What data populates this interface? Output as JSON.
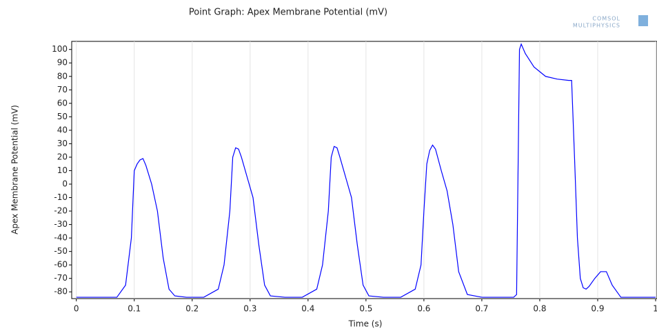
{
  "logo": [
    "COMSOL",
    "MULTIPHYSICS"
  ],
  "chart_data": {
    "type": "line",
    "title": "Point Graph: Apex Membrane Potential (mV)",
    "xlabel": "Time (s)",
    "ylabel": "Apex Membrane Potential (mV)",
    "x": [
      0,
      0.07,
      0.085,
      0.095,
      0.1,
      0.105,
      0.11,
      0.115,
      0.12,
      0.13,
      0.14,
      0.15,
      0.16,
      0.17,
      0.19,
      0.22,
      0.245,
      0.255,
      0.265,
      0.27,
      0.275,
      0.28,
      0.285,
      0.295,
      0.305,
      0.315,
      0.325,
      0.335,
      0.36,
      0.39,
      0.415,
      0.425,
      0.435,
      0.44,
      0.445,
      0.45,
      0.455,
      0.465,
      0.475,
      0.485,
      0.495,
      0.505,
      0.53,
      0.56,
      0.585,
      0.595,
      0.6,
      0.605,
      0.61,
      0.615,
      0.62,
      0.63,
      0.64,
      0.65,
      0.66,
      0.675,
      0.7,
      0.755,
      0.76,
      0.765,
      0.768,
      0.775,
      0.79,
      0.81,
      0.83,
      0.85,
      0.855,
      0.86,
      0.865,
      0.87,
      0.875,
      0.88,
      0.885,
      0.895,
      0.905,
      0.915,
      0.925,
      0.94,
      1.0
    ],
    "series": [
      {
        "name": "Apex Membrane Potential",
        "color": "#0000ff",
        "values": [
          -84,
          -84,
          -75,
          -40,
          10,
          15,
          18,
          19,
          14,
          0,
          -20,
          -55,
          -78,
          -83,
          -84,
          -84,
          -78,
          -60,
          -20,
          20,
          27,
          26,
          20,
          5,
          -10,
          -45,
          -75,
          -83,
          -84,
          -84,
          -78,
          -60,
          -20,
          20,
          28,
          27,
          20,
          5,
          -10,
          -45,
          -75,
          -83,
          -84,
          -84,
          -78,
          -60,
          -20,
          15,
          25,
          29,
          26,
          10,
          -5,
          -30,
          -65,
          -82,
          -84,
          -84,
          -82,
          100,
          104,
          97,
          87,
          80,
          78,
          77,
          77,
          20,
          -40,
          -70,
          -77,
          -78,
          -76,
          -70,
          -65,
          -65,
          -75,
          -84,
          -84
        ]
      }
    ],
    "xlim": [
      -0.008,
      1.0
    ],
    "ylim": [
      -85,
      106
    ],
    "xticks": [
      0,
      0.1,
      0.2,
      0.3,
      0.4,
      0.5,
      0.6,
      0.7,
      0.8,
      0.9,
      1
    ],
    "yticks": [
      100,
      90,
      80,
      70,
      60,
      50,
      40,
      30,
      20,
      10,
      0,
      -10,
      -20,
      -30,
      -40,
      -50,
      -60,
      -70,
      -80
    ],
    "grid": "x"
  }
}
